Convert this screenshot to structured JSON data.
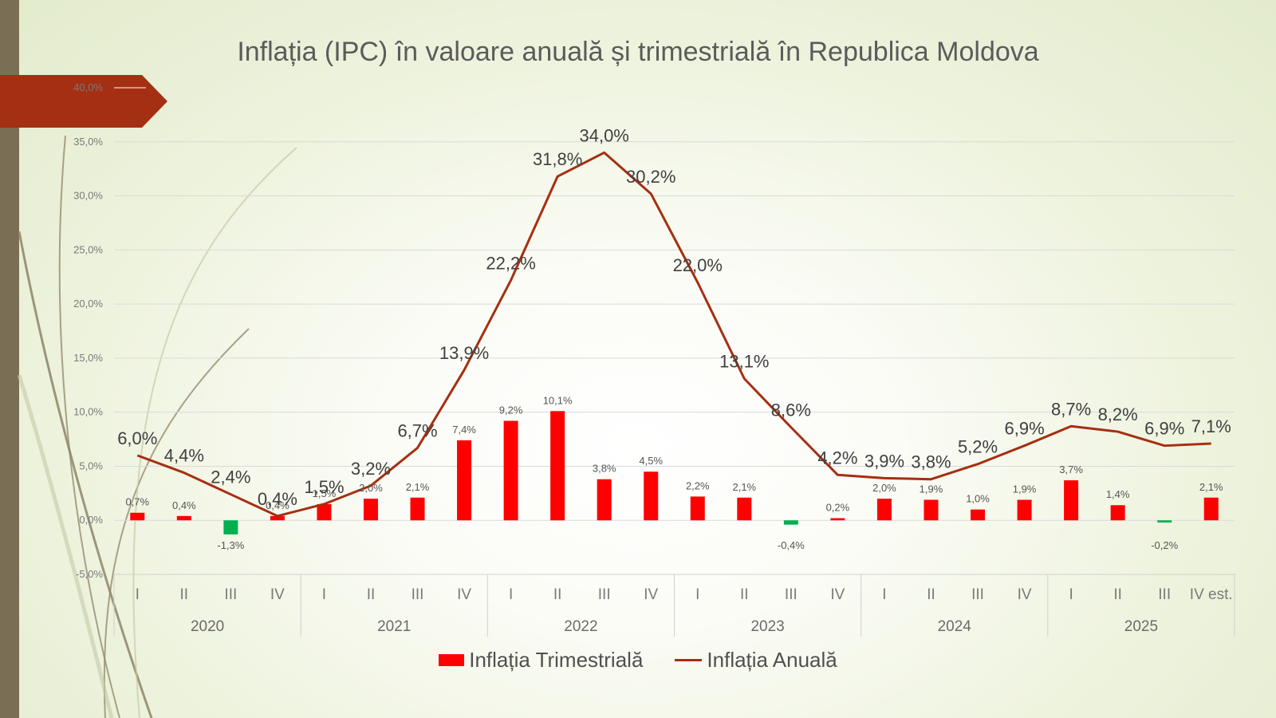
{
  "title": "Inflația (IPC) în valoare anuală și trimestrială în Republica Moldova",
  "colors": {
    "bar_positive": "#ff0000",
    "bar_negative": "#00b050",
    "line": "#a52f12",
    "banner": "#a52f12",
    "side_bar": "#7a6f54",
    "grid": "#dadada"
  },
  "legend": {
    "bar_label": "Inflația Trimestrială",
    "line_label": "Inflația Anuală",
    "placement": "bottom"
  },
  "chart_data": {
    "type": "bar+line",
    "title": "Inflația (IPC) în valoare anuală și trimestrială în Republica Moldova",
    "xlabel": "",
    "ylabel": "",
    "ylim": [
      -5,
      40
    ],
    "y_ticks": [
      "-5,0%",
      "0,0%",
      "5,0%",
      "10,0%",
      "15,0%",
      "20,0%",
      "25,0%",
      "30,0%",
      "35,0%",
      "40,0%"
    ],
    "grid": true,
    "groups": [
      {
        "year": "2020",
        "quarters": [
          "I",
          "II",
          "III",
          "IV"
        ]
      },
      {
        "year": "2021",
        "quarters": [
          "I",
          "II",
          "III",
          "IV"
        ]
      },
      {
        "year": "2022",
        "quarters": [
          "I",
          "II",
          "III",
          "IV"
        ]
      },
      {
        "year": "2023",
        "quarters": [
          "I",
          "II",
          "III",
          "IV"
        ]
      },
      {
        "year": "2024",
        "quarters": [
          "I",
          "II",
          "III",
          "IV"
        ]
      },
      {
        "year": "2025",
        "quarters": [
          "I",
          "II",
          "III",
          "IV est."
        ]
      }
    ],
    "series": [
      {
        "name": "Inflația Trimestrială",
        "type": "bar",
        "values": [
          0.7,
          0.4,
          -1.3,
          0.4,
          1.5,
          2.0,
          2.1,
          7.4,
          9.2,
          10.1,
          3.8,
          4.5,
          2.2,
          2.1,
          -0.4,
          0.2,
          2.0,
          1.9,
          1.0,
          1.9,
          3.7,
          1.4,
          -0.2,
          2.1
        ],
        "labels": [
          "0,7%",
          "0,4%",
          "-1,3%",
          "0,4%",
          "1,5%",
          "2,0%",
          "2,1%",
          "7,4%",
          "9,2%",
          "10,1%",
          "3,8%",
          "4,5%",
          "2,2%",
          "2,1%",
          "-0,4%",
          "0,2%",
          "2,0%",
          "1,9%",
          "1,0%",
          "1,9%",
          "3,7%",
          "1,4%",
          "-0,2%",
          "2,1%"
        ]
      },
      {
        "name": "Inflația Anuală",
        "type": "line",
        "values": [
          6.0,
          4.4,
          2.4,
          0.4,
          1.5,
          3.2,
          6.7,
          13.9,
          22.2,
          31.8,
          34.0,
          30.2,
          22.0,
          13.1,
          8.6,
          4.2,
          3.9,
          3.8,
          5.2,
          6.9,
          8.7,
          8.2,
          6.9,
          7.1
        ],
        "labels": [
          "6,0%",
          "4,4%",
          "2,4%",
          "0,4%",
          "1,5%",
          "3,2%",
          "6,7%",
          "13,9%",
          "22,2%",
          "31,8%",
          "34,0%",
          "30,2%",
          "22,0%",
          "13,1%",
          "8,6%",
          "4,2%",
          "3,9%",
          "3,8%",
          "5,2%",
          "6,9%",
          "8,7%",
          "8,2%",
          "6,9%",
          "7,1%"
        ]
      }
    ]
  }
}
